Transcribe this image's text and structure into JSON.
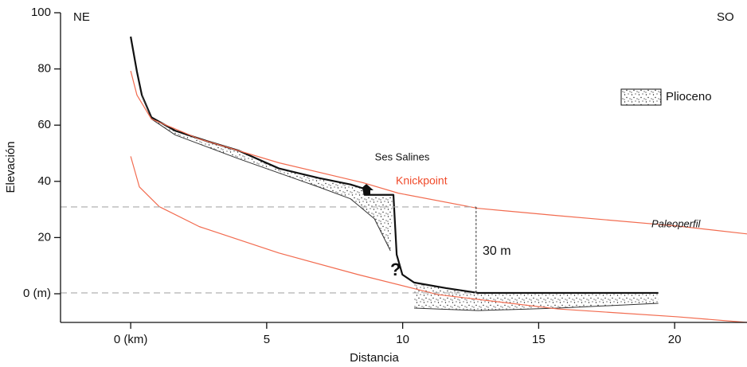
{
  "chart_data": {
    "type": "line",
    "xlabel": "Distancia",
    "ylabel": "Elevación",
    "xlim": [
      -2.58,
      22.66
    ],
    "ylim": [
      -10.2,
      100
    ],
    "xticks": [
      {
        "value": 0,
        "label": "0 (km)"
      },
      5,
      10,
      15,
      20
    ],
    "yticks": [
      {
        "value": 0,
        "label": "0 (m)"
      },
      20,
      40,
      60,
      80,
      100
    ],
    "series": [
      {
        "color": "#111111",
        "width": 2.2,
        "x": [
          0,
          0.23,
          0.41,
          0.76,
          1.64,
          2.81,
          3.98,
          5.45,
          6.91,
          8.08,
          8.55,
          8.6,
          9.66,
          9.78,
          9.99,
          10.42,
          11.6,
          12.77,
          19.4
        ],
        "y": [
          91.5,
          79,
          70.7,
          62.8,
          58,
          54.3,
          50.9,
          44.6,
          41.2,
          38.9,
          37.5,
          35.2,
          35.2,
          13.9,
          6.8,
          4,
          2,
          0.3,
          0.3
        ]
      },
      {
        "color": "#333333",
        "width": 1,
        "x": [
          0.41,
          0.76,
          1.64,
          3.98,
          6.91,
          8.08,
          8.96,
          9.55
        ],
        "y": [
          70.7,
          62.2,
          56.5,
          48,
          38,
          33.8,
          26.7,
          15.3
        ]
      },
      {
        "color": "#333333",
        "width": 1,
        "x": [
          10.42,
          12.77,
          15.7,
          19.4
        ],
        "y": [
          -5.1,
          -6,
          -5.1,
          -3.4
        ]
      },
      {
        "color": "#f26b4f",
        "width": 1.2,
        "x": [
          0,
          0.23,
          0.76,
          2.52,
          5.45,
          8.55,
          9.84,
          12.77,
          15.7,
          20.1,
          22.66
        ],
        "y": [
          79.3,
          70.7,
          62.2,
          55.1,
          46.6,
          39.5,
          35.8,
          30.4,
          27.8,
          24.1,
          21.3
        ]
      },
      {
        "color": "#f26b4f",
        "width": 1.2,
        "x": [
          0,
          0.32,
          1.05,
          2.52,
          5.45,
          8.37,
          11.3,
          15.7,
          20.1,
          22.66
        ],
        "y": [
          48.9,
          38,
          31,
          23.9,
          14.5,
          6.8,
          -0.3,
          -5.4,
          -8.2,
          -10.2
        ]
      },
      {
        "color": "#aaaaaa",
        "width": 1.2,
        "dash": "8 5",
        "x": [
          -2.58,
          12.7
        ],
        "y": [
          30.9,
          30.9
        ]
      },
      {
        "color": "#aaaaaa",
        "width": 1.2,
        "dash": "8 5",
        "x": [
          -2.58,
          12.7
        ],
        "y": [
          0.3,
          0.3
        ]
      },
      {
        "color": "#333333",
        "width": 1,
        "dash": "3 2",
        "x": [
          12.7,
          12.7
        ],
        "y": [
          0.3,
          30.9
        ]
      }
    ],
    "areas": [
      {
        "x": [
          0.41,
          0.76,
          1.64,
          2.81,
          3.98,
          5.45,
          6.91,
          8.08,
          8.55,
          8.6,
          9.66,
          9.55,
          8.96,
          8.08,
          6.91,
          3.98,
          1.64,
          0.76
        ],
        "y": [
          70.7,
          62.8,
          58,
          54.3,
          50.9,
          44.6,
          41.2,
          38.9,
          37.5,
          35.2,
          35.2,
          15.3,
          26.7,
          33.8,
          38,
          48,
          56.5,
          62.2
        ]
      },
      {
        "x": [
          10.42,
          11.6,
          12.77,
          19.4,
          19.4,
          15.7,
          12.77,
          10.42
        ],
        "y": [
          4,
          2,
          0.3,
          0.3,
          -3.4,
          -5.1,
          -6,
          -5.1
        ]
      }
    ],
    "legend": "Plioceno",
    "annotations": [
      {
        "text": "NE"
      },
      {
        "text": "SO"
      },
      {
        "text": "Ses Salines"
      },
      {
        "text": "Knickpoint",
        "color": "#f04a2a"
      },
      {
        "text": "Paleoperfil",
        "italic": true
      },
      {
        "text": "30 m"
      },
      {
        "text": "?"
      }
    ]
  }
}
